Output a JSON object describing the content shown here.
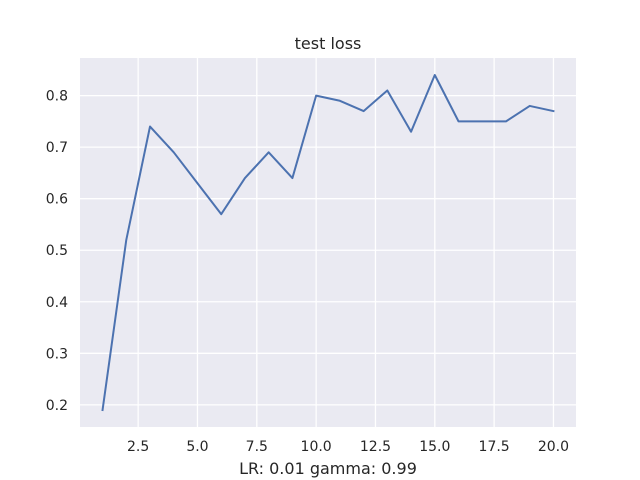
{
  "chart_data": {
    "type": "line",
    "title": "test loss",
    "xlabel": "LR: 0.01 gamma: 0.99",
    "ylabel": "",
    "x": [
      1,
      2,
      3,
      4,
      5,
      6,
      7,
      8,
      9,
      10,
      11,
      12,
      13,
      14,
      15,
      16,
      17,
      18,
      19,
      20
    ],
    "series": [
      {
        "name": "test loss",
        "values": [
          0.19,
          0.52,
          0.74,
          0.69,
          0.63,
          0.57,
          0.64,
          0.69,
          0.64,
          0.8,
          0.79,
          0.77,
          0.81,
          0.73,
          0.84,
          0.75,
          0.75,
          0.75,
          0.78,
          0.77
        ],
        "color": "#4c72b0"
      }
    ],
    "xlim": [
      0.05,
      20.95
    ],
    "ylim": [
      0.157,
      0.873
    ],
    "xticks": [
      2.5,
      5.0,
      7.5,
      10.0,
      12.5,
      15.0,
      17.5,
      20.0
    ],
    "xtick_labels": [
      "2.5",
      "5.0",
      "7.5",
      "10.0",
      "12.5",
      "15.0",
      "17.5",
      "20.0"
    ],
    "yticks": [
      0.2,
      0.3,
      0.4,
      0.5,
      0.6,
      0.7,
      0.8
    ],
    "ytick_labels": [
      "0.2",
      "0.3",
      "0.4",
      "0.5",
      "0.6",
      "0.7",
      "0.8"
    ],
    "grid": true,
    "colors": {
      "plot_background": "#eaeaf2",
      "grid": "#ffffff",
      "text": "#262626"
    }
  }
}
